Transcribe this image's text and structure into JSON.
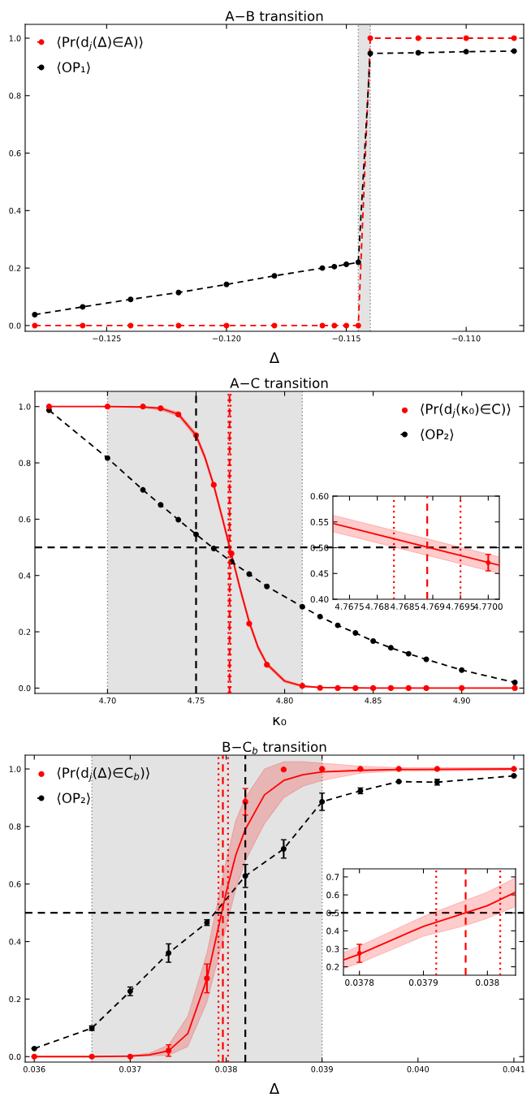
{
  "chart_data": [
    {
      "type": "line",
      "title": "A−B transition",
      "xlabel": "Δ",
      "xlim": [
        -0.1284,
        -0.1076
      ],
      "ylim": [
        -0.02,
        1.048
      ],
      "xticks": [
        {
          "value": -0.125,
          "label": "−0.125"
        },
        {
          "value": -0.12,
          "label": "−0.120"
        },
        {
          "value": -0.115,
          "label": "−0.115"
        },
        {
          "value": -0.11,
          "label": "−0.110"
        }
      ],
      "yticks": [
        {
          "value": 0,
          "label": "0.0"
        },
        0.2,
        0.4,
        0.6,
        0.8,
        {
          "value": 1,
          "label": "1.0"
        }
      ],
      "legend": "top left",
      "grid": false,
      "bands": [
        {
          "axis": "x",
          "from": -0.1145,
          "to": -0.114,
          "color": "#e3e3e3"
        }
      ],
      "ref_lines": [
        {
          "axis": "x",
          "value": -0.1145,
          "color": "#888888",
          "line_style": "dotted"
        },
        {
          "axis": "x",
          "value": -0.114,
          "color": "#888888",
          "line_style": "dotted"
        }
      ],
      "series": [
        {
          "name": "⟨Pr(d$_{j}$(Δ)∈A)⟩",
          "color": "#ff0000",
          "type": "line",
          "marker": "circle",
          "line_style": "dashed",
          "x": [
            -0.128,
            -0.126,
            -0.124,
            -0.122,
            -0.12,
            -0.118,
            -0.116,
            -0.1155,
            -0.115,
            -0.1145,
            -0.114,
            -0.112,
            -0.11,
            -0.108
          ],
          "values": [
            0,
            0,
            0,
            0,
            0,
            0,
            0,
            0,
            0,
            0,
            1,
            1,
            1,
            1
          ]
        },
        {
          "name": "⟨OP₁⟩",
          "color": "#000000",
          "type": "line",
          "marker": "circle",
          "line_style": "dashed",
          "x": [
            -0.128,
            -0.126,
            -0.124,
            -0.122,
            -0.12,
            -0.118,
            -0.116,
            -0.1155,
            -0.115,
            -0.1145,
            -0.114,
            -0.112,
            -0.11,
            -0.108
          ],
          "values": [
            0.038,
            0.065,
            0.091,
            0.115,
            0.143,
            0.173,
            0.2,
            0.205,
            0.213,
            0.22,
            0.947,
            0.949,
            0.953,
            0.955
          ]
        }
      ]
    },
    {
      "type": "line",
      "title": "A−C transition",
      "xlabel": "κ₀",
      "xlim": [
        4.659,
        4.935
      ],
      "ylim": [
        -0.019,
        1.054
      ],
      "xticks": [
        {
          "value": 4.7,
          "label": "4.70"
        },
        {
          "value": 4.75,
          "label": "4.75"
        },
        {
          "value": 4.8,
          "label": "4.80"
        },
        {
          "value": 4.85,
          "label": "4.85"
        },
        {
          "value": 4.9,
          "label": "4.90"
        }
      ],
      "yticks": [
        {
          "value": 0,
          "label": "0.0"
        },
        0.2,
        0.4,
        0.6,
        0.8,
        {
          "value": 1,
          "label": "1.0"
        }
      ],
      "legend": "top right",
      "grid": false,
      "bands": [
        {
          "axis": "x",
          "from": 4.7,
          "to": 4.81,
          "color": "#e3e3e3"
        }
      ],
      "ref_lines": [
        {
          "axis": "x",
          "value": 4.7,
          "color": "#888888",
          "line_style": "dotted"
        },
        {
          "axis": "x",
          "value": 4.81,
          "color": "#888888",
          "line_style": "dotted"
        },
        {
          "axis": "y",
          "value": 0.5,
          "color": "#000000",
          "line_style": "dashed"
        },
        {
          "axis": "x",
          "value": 4.75,
          "color": "#000000",
          "line_style": "dashed"
        },
        {
          "axis": "x",
          "value": 4.7689,
          "color": "#ff0000",
          "line_style": "dashed"
        },
        {
          "axis": "x",
          "value": 4.7683,
          "color": "#ff0000",
          "line_style": "dotted"
        },
        {
          "axis": "x",
          "value": 4.7695,
          "color": "#ff0000",
          "line_style": "dotted"
        }
      ],
      "series": [
        {
          "color": "#ff0000",
          "type": "line",
          "marker": "none",
          "line_style": "solid",
          "x": [
            4.667,
            4.7,
            4.72,
            4.73,
            4.74,
            4.75,
            4.755,
            4.76,
            4.765,
            4.77,
            4.775,
            4.78,
            4.785,
            4.79,
            4.8,
            4.81,
            4.82,
            4.85,
            4.93
          ],
          "values": [
            1,
            1,
            0.999,
            0.994,
            0.973,
            0.898,
            0.82,
            0.72,
            0.6,
            0.475,
            0.35,
            0.235,
            0.145,
            0.085,
            0.025,
            0.007,
            0.002,
            0,
            0
          ],
          "lower": [
            1,
            1,
            0.995,
            0.988,
            0.965,
            0.888,
            0.81,
            0.71,
            0.59,
            0.465,
            0.34,
            0.225,
            0.137,
            0.078,
            0.02,
            0.004,
            0,
            0,
            0
          ],
          "upper": [
            1,
            1,
            1,
            0.998,
            0.98,
            0.907,
            0.83,
            0.73,
            0.61,
            0.485,
            0.36,
            0.245,
            0.153,
            0.092,
            0.03,
            0.01,
            0.004,
            0,
            0
          ]
        },
        {
          "name": "⟨Pr(d$_{j}$(κ₀)∈C)⟩",
          "color": "#ff0000",
          "type": "scatter",
          "marker": "circle",
          "x": [
            4.667,
            4.7,
            4.72,
            4.73,
            4.74,
            4.75,
            4.76,
            4.77,
            4.78,
            4.79,
            4.81,
            4.82,
            4.83,
            4.84,
            4.85,
            4.86,
            4.87,
            4.88,
            4.9,
            4.93
          ],
          "values": [
            1,
            1,
            1,
            0.994,
            0.972,
            0.898,
            0.722,
            0.478,
            0.229,
            0.083,
            0.008,
            0.001,
            0,
            0,
            0,
            0,
            0,
            0,
            0,
            0
          ]
        },
        {
          "name": "⟨OP₂⟩",
          "color": "#000000",
          "type": "line",
          "marker": "circle",
          "line_style": "dashed",
          "x": [
            4.667,
            4.7,
            4.72,
            4.73,
            4.74,
            4.75,
            4.76,
            4.77,
            4.78,
            4.79,
            4.81,
            4.82,
            4.83,
            4.84,
            4.85,
            4.86,
            4.87,
            4.88,
            4.9,
            4.93
          ],
          "values": [
            0.987,
            0.817,
            0.704,
            0.651,
            0.598,
            0.546,
            0.496,
            0.449,
            0.405,
            0.361,
            0.289,
            0.254,
            0.223,
            0.196,
            0.167,
            0.143,
            0.122,
            0.102,
            0.064,
            0.02
          ]
        }
      ]
    },
    {
      "type": "line",
      "xlim": [
        4.7672,
        4.7702
      ],
      "ylim": [
        0.4,
        0.6
      ],
      "xticks": [
        4.7675,
        4.768,
        4.7685,
        4.769,
        4.7695,
        {
          "value": 4.77,
          "label": "4.7700"
        }
      ],
      "yticks": [
        {
          "value": 0.4,
          "label": "0.40"
        },
        0.45,
        {
          "value": 0.5,
          "label": "0.50"
        },
        0.55,
        {
          "value": 0.6,
          "label": "0.60"
        }
      ],
      "grid": false,
      "ref_lines": [
        {
          "axis": "x",
          "value": 4.7689,
          "color": "#ff0000",
          "line_style": "dashed"
        },
        {
          "axis": "x",
          "value": 4.7683,
          "color": "#ff0000",
          "line_style": "dotted"
        },
        {
          "axis": "x",
          "value": 4.7695,
          "color": "#ff0000",
          "line_style": "dotted"
        }
      ],
      "series": [
        {
          "color": "#ff0000",
          "type": "line",
          "marker": "none",
          "line_style": "solid",
          "x": [
            4.7672,
            4.7702
          ],
          "values": [
            0.547,
            0.466
          ],
          "lower": [
            0.531,
            0.45
          ],
          "upper": [
            0.563,
            0.482
          ]
        },
        {
          "color": "#ff0000",
          "type": "scatter",
          "marker": "circle",
          "x": [
            4.77
          ],
          "values": [
            0.471
          ],
          "errors": [
            0.016
          ]
        }
      ]
    },
    {
      "type": "line",
      "title": "B−C$_{b}$ transition",
      "xlabel": "Δ",
      "xlim": [
        0.035905,
        0.041102
      ],
      "ylim": [
        -0.019,
        1.048
      ],
      "xticks": [
        0.036,
        0.037,
        0.038,
        0.039,
        {
          "value": 0.04,
          "label": "0.040"
        },
        0.041
      ],
      "yticks": [
        {
          "value": 0,
          "label": "0.0"
        },
        0.2,
        0.4,
        0.6,
        0.8,
        {
          "value": 1,
          "label": "1.0"
        }
      ],
      "legend": "top left",
      "grid": false,
      "bands": [
        {
          "axis": "x",
          "from": 0.0366,
          "to": 0.039,
          "color": "#e3e3e3"
        }
      ],
      "ref_lines": [
        {
          "axis": "x",
          "value": 0.0366,
          "color": "#888888",
          "line_style": "dotted"
        },
        {
          "axis": "x",
          "value": 0.039,
          "color": "#888888",
          "line_style": "dotted"
        },
        {
          "axis": "y",
          "value": 0.5,
          "color": "#000000",
          "line_style": "dashed"
        },
        {
          "axis": "x",
          "value": 0.0382,
          "color": "#000000",
          "line_style": "dashed"
        },
        {
          "axis": "x",
          "value": 0.037966,
          "color": "#ff0000",
          "line_style": "dashed"
        },
        {
          "axis": "x",
          "value": 0.03792,
          "color": "#ff0000",
          "line_style": "dotted"
        },
        {
          "axis": "x",
          "value": 0.03802,
          "color": "#ff0000",
          "line_style": "dotted"
        }
      ],
      "series": [
        {
          "color": "#ff0000",
          "type": "line",
          "marker": "none",
          "line_style": "solid",
          "x": [
            0.036,
            0.0366,
            0.037,
            0.0372,
            0.0374,
            0.0376,
            0.0378,
            0.0379,
            0.038,
            0.0381,
            0.0382,
            0.0384,
            0.0386,
            0.0388,
            0.039,
            0.0394,
            0.0398,
            0.041
          ],
          "values": [
            0,
            0,
            0.002,
            0.006,
            0.02,
            0.08,
            0.27,
            0.42,
            0.57,
            0.7,
            0.79,
            0.91,
            0.96,
            0.98,
            0.99,
            0.995,
            0.998,
            1
          ],
          "lower": [
            0,
            0,
            0,
            0.002,
            0.005,
            0.035,
            0.19,
            0.32,
            0.45,
            0.58,
            0.68,
            0.81,
            0.9,
            0.94,
            0.96,
            0.985,
            0.993,
            0.995
          ],
          "upper": [
            0,
            0,
            0.004,
            0.012,
            0.04,
            0.14,
            0.36,
            0.52,
            0.68,
            0.82,
            0.9,
            1,
            1.025,
            1.025,
            1.02,
            1.01,
            1.005,
            1.005
          ]
        },
        {
          "name": "⟨Pr(d$_{j}$(Δ)∈C$_{b}$)⟩",
          "color": "#ff0000",
          "type": "scatter",
          "marker": "circle",
          "x": [
            0.036,
            0.0366,
            0.037,
            0.0374,
            0.0378,
            0.0382,
            0.0386,
            0.039,
            0.0394,
            0.0398,
            0.0402,
            0.041
          ],
          "values": [
            0,
            0,
            0,
            0.021,
            0.272,
            0.886,
            0.998,
            1,
            1,
            1,
            1,
            1
          ],
          "errors": [
            null,
            null,
            null,
            0.02,
            0.05,
            0.046,
            null,
            null,
            null,
            null,
            null,
            null
          ]
        },
        {
          "name": "⟨OP₂⟩",
          "color": "#000000",
          "type": "line",
          "marker": "circle",
          "line_style": "dashed",
          "x": [
            0.036,
            0.0366,
            0.037,
            0.0374,
            0.0378,
            0.0382,
            0.0386,
            0.039,
            0.0394,
            0.0398,
            0.0402,
            0.041
          ],
          "values": [
            0.028,
            0.099,
            0.227,
            0.36,
            0.466,
            0.628,
            0.722,
            0.886,
            0.924,
            0.956,
            0.954,
            0.976
          ],
          "errors": [
            null,
            0.008,
            0.015,
            0.032,
            0.01,
            0.04,
            0.032,
            0.03,
            0.01,
            null,
            0.01,
            null
          ]
        }
      ]
    },
    {
      "type": "line",
      "xlim": [
        0.037775,
        0.038044
      ],
      "ylim": [
        0.153,
        0.745
      ],
      "xticks": [
        0.0378,
        0.0379,
        0.038
      ],
      "yticks": [
        0.2,
        0.3,
        0.4,
        0.5,
        0.6,
        0.7
      ],
      "grid": false,
      "ref_lines": [
        {
          "axis": "x",
          "value": 0.037966,
          "color": "#ff0000",
          "line_style": "dashed"
        },
        {
          "axis": "x",
          "value": 0.03792,
          "color": "#ff0000",
          "line_style": "dotted"
        },
        {
          "axis": "x",
          "value": 0.03802,
          "color": "#ff0000",
          "line_style": "dotted"
        }
      ],
      "series": [
        {
          "color": "#ff0000",
          "type": "line",
          "marker": "none",
          "line_style": "solid",
          "x": [
            0.037775,
            0.0378,
            0.0379,
            0.037966,
            0.038,
            0.038044
          ],
          "values": [
            0.238,
            0.27,
            0.425,
            0.5,
            0.54,
            0.615
          ],
          "lower": [
            0.19,
            0.22,
            0.37,
            0.43,
            0.47,
            0.535
          ],
          "upper": [
            0.28,
            0.315,
            0.48,
            0.57,
            0.615,
            0.695
          ]
        },
        {
          "color": "#ff0000",
          "type": "scatter",
          "marker": "circle",
          "x": [
            0.0378
          ],
          "values": [
            0.275
          ],
          "errors": [
            0.05
          ]
        }
      ]
    }
  ]
}
